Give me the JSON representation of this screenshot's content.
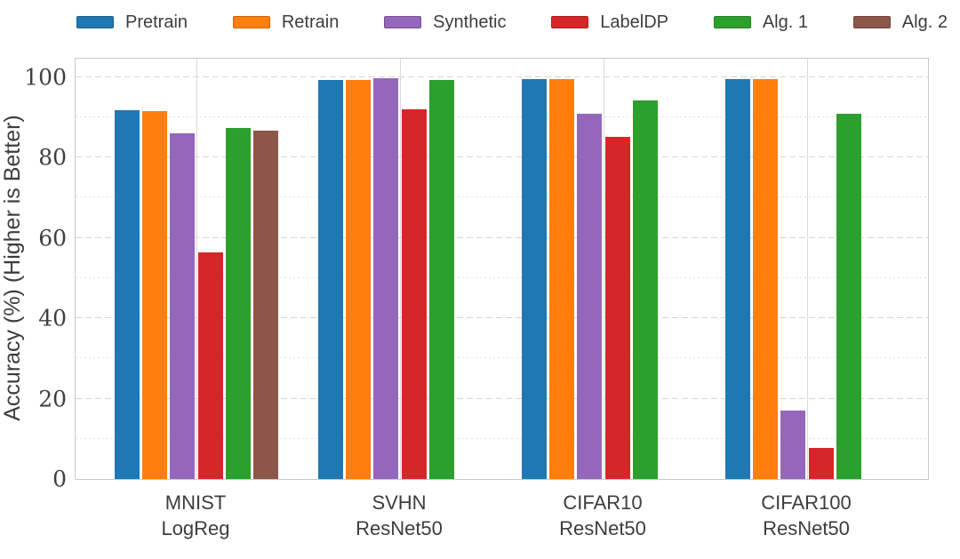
{
  "accent_colors": {
    "blue": "#1f77b4",
    "orange": "#ff7f0e",
    "purple": "#9467bd",
    "red": "#d62728",
    "green": "#2ca02c",
    "brown": "#8c564b"
  },
  "legend": {
    "items": [
      {
        "label": "Pretrain",
        "color": "#1f77b4"
      },
      {
        "label": "Retrain",
        "color": "#ff7f0e"
      },
      {
        "label": "Synthetic",
        "color": "#9467bd"
      },
      {
        "label": "LabelDP",
        "color": "#d62728"
      },
      {
        "label": "Alg. 1",
        "color": "#2ca02c"
      },
      {
        "label": "Alg. 2",
        "color": "#8c564b"
      }
    ]
  },
  "chart_data": {
    "type": "bar",
    "title": "",
    "xlabel": "",
    "ylabel": "Accuracy (%) (Higher is Better)",
    "categories": [
      {
        "dataset": "MNIST",
        "model": "LogReg"
      },
      {
        "dataset": "SVHN",
        "model": "ResNet50"
      },
      {
        "dataset": "CIFAR10",
        "model": "ResNet50"
      },
      {
        "dataset": "CIFAR100",
        "model": "ResNet50"
      }
    ],
    "series": [
      {
        "name": "Pretrain",
        "color": "#1f77b4",
        "values": [
          91.8,
          99.4,
          99.6,
          99.5
        ]
      },
      {
        "name": "Retrain",
        "color": "#ff7f0e",
        "values": [
          91.6,
          99.2,
          99.6,
          99.6
        ]
      },
      {
        "name": "Synthetic",
        "color": "#9467bd",
        "values": [
          86.0,
          99.7,
          91.0,
          17.0
        ]
      },
      {
        "name": "LabelDP",
        "color": "#d62728",
        "values": [
          56.5,
          91.9,
          85.1,
          7.8
        ]
      },
      {
        "name": "Alg. 1",
        "color": "#2ca02c",
        "values": [
          87.3,
          99.4,
          94.3,
          91.0
        ]
      },
      {
        "name": "Alg. 2",
        "color": "#8c564b",
        "values": [
          86.8,
          null,
          null,
          null
        ]
      }
    ],
    "ylim": [
      0,
      104.6
    ],
    "yticks": [
      0,
      20,
      40,
      60,
      80,
      100
    ],
    "minor_yticks": [
      10,
      30,
      50,
      70,
      90
    ],
    "grid": true,
    "legend_position": "top"
  }
}
